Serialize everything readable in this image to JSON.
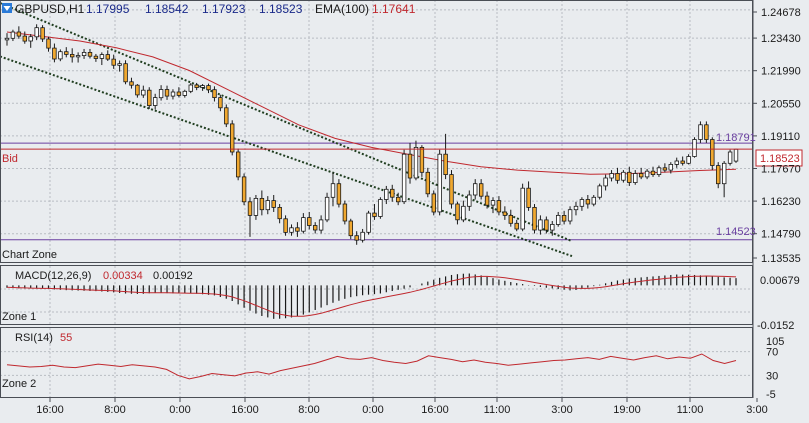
{
  "header": {
    "symbol": "GBPUSD,H1",
    "open": "1.17995",
    "high": "1.18542",
    "low": "1.17923",
    "close": "1.18523",
    "ema_label": "EMA(100)",
    "ema_value": "1.17641"
  },
  "colors": {
    "background": "#e9ecef",
    "grid": "#b9bdc3",
    "up_fill": "#ffffff",
    "down_fill": "#f0a830",
    "candle_outline": "#1a1a1a",
    "ema_line": "#c0282e",
    "bid_line": "#c0282e",
    "hline": "#6a3fa0",
    "channel": "#1f3d1f",
    "ohlc_text": "#1a2a8a",
    "ema_text": "#c0282e",
    "macd_hist": "#1a1a1a",
    "macd_signal": "#c0282e",
    "rsi_line": "#c0282e",
    "bid_label_border": "#c0282e"
  },
  "main_panel": {
    "zone_label": "Chart Zone",
    "bid_label": "Bid",
    "bid_price_tag": "1.18523",
    "price_axis_labels": [
      "1.24678",
      "1.23430",
      "1.21990",
      "1.20550",
      "1.19110",
      "1.17670",
      "1.16230",
      "1.14790",
      "1.13535"
    ],
    "hline_upper_label": "1.18791",
    "hline_lower_label": "1.14523"
  },
  "macd_panel": {
    "title": "MACD(12,26,9)",
    "value1": "0.00334",
    "value2": "0.00192",
    "zone_label": "Zone 1",
    "axis_labels": [
      "0.00679",
      "-0.0152"
    ]
  },
  "rsi_panel": {
    "title": "RSI(14)",
    "value": "55",
    "zone_label": "Zone 2",
    "axis_labels": [
      "105",
      "70",
      "30",
      "-5"
    ]
  },
  "time_axis": {
    "labels": [
      "16:00",
      "8:00",
      "0:00",
      "16:00",
      "8:00",
      "0:00",
      "16:00",
      "11:00",
      "3:00",
      "19:00",
      "11:00",
      "3:00"
    ]
  },
  "chart_data": {
    "type": "candlestick",
    "symbol": "GBPUSD",
    "timeframe": "H1",
    "ema_period": 100,
    "price_range": [
      1.1354,
      1.2498
    ],
    "candles_ohlc": [
      [
        1.2335,
        1.2365,
        1.231,
        1.2342
      ],
      [
        1.2342,
        1.238,
        1.233,
        1.237
      ],
      [
        1.237,
        1.2395,
        1.234,
        1.2352
      ],
      [
        1.2352,
        1.2372,
        1.2318,
        1.233
      ],
      [
        1.233,
        1.2361,
        1.23,
        1.2349
      ],
      [
        1.2349,
        1.2404,
        1.2334,
        1.2389
      ],
      [
        1.2389,
        1.24,
        1.2326,
        1.2339
      ],
      [
        1.2339,
        1.2349,
        1.2283,
        1.2299
      ],
      [
        1.2299,
        1.2319,
        1.2236,
        1.2251
      ],
      [
        1.2251,
        1.2293,
        1.2241,
        1.2283
      ],
      [
        1.2283,
        1.2303,
        1.2258,
        1.2271
      ],
      [
        1.2271,
        1.2298,
        1.2235,
        1.226
      ],
      [
        1.226,
        1.228,
        1.2235,
        1.2266
      ],
      [
        1.2266,
        1.2295,
        1.2251,
        1.228
      ],
      [
        1.228,
        1.2295,
        1.2253,
        1.2263
      ],
      [
        1.2263,
        1.2273,
        1.2238,
        1.2253
      ],
      [
        1.2253,
        1.228,
        1.2224,
        1.227
      ],
      [
        1.227,
        1.2289,
        1.2242,
        1.225
      ],
      [
        1.225,
        1.227,
        1.2207,
        1.2223
      ],
      [
        1.2223,
        1.2244,
        1.2195,
        1.223
      ],
      [
        1.223,
        1.2245,
        1.2139,
        1.215
      ],
      [
        1.215,
        1.2168,
        1.212,
        1.2135
      ],
      [
        1.2135,
        1.214,
        1.208,
        1.2092
      ],
      [
        1.2092,
        1.2133,
        1.2079,
        1.2113
      ],
      [
        1.2113,
        1.2126,
        1.203,
        1.2045
      ],
      [
        1.2045,
        1.2097,
        1.2028,
        1.208
      ],
      [
        1.208,
        1.2135,
        1.2067,
        1.2116
      ],
      [
        1.2116,
        1.2133,
        1.207,
        1.2087
      ],
      [
        1.2087,
        1.2117,
        1.2072,
        1.2105
      ],
      [
        1.2105,
        1.2126,
        1.2081,
        1.209
      ],
      [
        1.209,
        1.2115,
        1.208,
        1.2108
      ],
      [
        1.2108,
        1.2144,
        1.21,
        1.2136
      ],
      [
        1.2136,
        1.2145,
        1.2113,
        1.2125
      ],
      [
        1.2125,
        1.214,
        1.211,
        1.2133
      ],
      [
        1.2133,
        1.2142,
        1.21,
        1.2115
      ],
      [
        1.2115,
        1.213,
        1.2063,
        1.208
      ],
      [
        1.208,
        1.2093,
        1.202,
        1.2035
      ],
      [
        1.2035,
        1.205,
        1.195,
        1.1964
      ],
      [
        1.1964,
        1.198,
        1.1825,
        1.184
      ],
      [
        1.184,
        1.1855,
        1.1715,
        1.173
      ],
      [
        1.173,
        1.1745,
        1.1605,
        1.162
      ],
      [
        1.162,
        1.164,
        1.1465,
        1.156
      ],
      [
        1.156,
        1.165,
        1.154,
        1.1635
      ],
      [
        1.1635,
        1.167,
        1.156,
        1.1585
      ],
      [
        1.1585,
        1.1645,
        1.1565,
        1.1625
      ],
      [
        1.1625,
        1.165,
        1.1575,
        1.1595
      ],
      [
        1.1595,
        1.161,
        1.1525,
        1.1545
      ],
      [
        1.1545,
        1.156,
        1.147,
        1.1485
      ],
      [
        1.1485,
        1.152,
        1.147,
        1.1505
      ],
      [
        1.1505,
        1.153,
        1.1465,
        1.149
      ],
      [
        1.149,
        1.157,
        1.148,
        1.155
      ],
      [
        1.155,
        1.1575,
        1.1498,
        1.1515
      ],
      [
        1.1515,
        1.153,
        1.148,
        1.1495
      ],
      [
        1.1495,
        1.156,
        1.148,
        1.154
      ],
      [
        1.154,
        1.166,
        1.153,
        1.164
      ],
      [
        1.164,
        1.175,
        1.16,
        1.17
      ],
      [
        1.17,
        1.172,
        1.1595,
        1.161
      ],
      [
        1.161,
        1.1625,
        1.152,
        1.1535
      ],
      [
        1.1535,
        1.1545,
        1.1455,
        1.147
      ],
      [
        1.147,
        1.149,
        1.143,
        1.145
      ],
      [
        1.145,
        1.15,
        1.144,
        1.1485
      ],
      [
        1.1485,
        1.158,
        1.1475,
        1.157
      ],
      [
        1.157,
        1.161,
        1.154,
        1.1555
      ],
      [
        1.1555,
        1.164,
        1.1545,
        1.163
      ],
      [
        1.163,
        1.169,
        1.161,
        1.1675
      ],
      [
        1.1675,
        1.1695,
        1.162,
        1.164
      ],
      [
        1.164,
        1.166,
        1.1605,
        1.162
      ],
      [
        1.162,
        1.185,
        1.161,
        1.183
      ],
      [
        1.183,
        1.188,
        1.17,
        1.1725
      ],
      [
        1.1725,
        1.189,
        1.1715,
        1.186
      ],
      [
        1.186,
        1.187,
        1.173,
        1.175
      ],
      [
        1.175,
        1.177,
        1.164,
        1.1655
      ],
      [
        1.1655,
        1.167,
        1.156,
        1.1575
      ],
      [
        1.1575,
        1.185,
        1.156,
        1.183
      ],
      [
        1.183,
        1.192,
        1.172,
        1.174
      ],
      [
        1.174,
        1.176,
        1.159,
        1.161
      ],
      [
        1.161,
        1.162,
        1.152,
        1.154
      ],
      [
        1.154,
        1.1625,
        1.153,
        1.16
      ],
      [
        1.16,
        1.167,
        1.158,
        1.165
      ],
      [
        1.165,
        1.172,
        1.163,
        1.17
      ],
      [
        1.17,
        1.172,
        1.163,
        1.1645
      ],
      [
        1.1645,
        1.1665,
        1.159,
        1.1605
      ],
      [
        1.1605,
        1.164,
        1.157,
        1.1625
      ],
      [
        1.1625,
        1.1645,
        1.156,
        1.1575
      ],
      [
        1.1575,
        1.16,
        1.154,
        1.156
      ],
      [
        1.156,
        1.1585,
        1.151,
        1.1525
      ],
      [
        1.1525,
        1.154,
        1.149,
        1.15
      ],
      [
        1.15,
        1.17,
        1.149,
        1.168
      ],
      [
        1.168,
        1.171,
        1.158,
        1.1595
      ],
      [
        1.1595,
        1.161,
        1.148,
        1.1495
      ],
      [
        1.1495,
        1.156,
        1.1475,
        1.154
      ],
      [
        1.154,
        1.1555,
        1.148,
        1.1495
      ],
      [
        1.1495,
        1.1535,
        1.147,
        1.152
      ],
      [
        1.152,
        1.1575,
        1.151,
        1.156
      ],
      [
        1.156,
        1.158,
        1.152,
        1.1535
      ],
      [
        1.1535,
        1.16,
        1.152,
        1.1585
      ],
      [
        1.1585,
        1.162,
        1.156,
        1.16
      ],
      [
        1.16,
        1.164,
        1.158,
        1.163
      ],
      [
        1.163,
        1.165,
        1.159,
        1.161
      ],
      [
        1.161,
        1.165,
        1.16,
        1.164
      ],
      [
        1.164,
        1.17,
        1.163,
        1.169
      ],
      [
        1.169,
        1.174,
        1.167,
        1.1725
      ],
      [
        1.1725,
        1.176,
        1.171,
        1.1745
      ],
      [
        1.1745,
        1.177,
        1.17,
        1.1715
      ],
      [
        1.1715,
        1.176,
        1.1705,
        1.175
      ],
      [
        1.175,
        1.1775,
        1.169,
        1.1705
      ],
      [
        1.1705,
        1.176,
        1.1695,
        1.1745
      ],
      [
        1.1745,
        1.177,
        1.172,
        1.173
      ],
      [
        1.173,
        1.1765,
        1.172,
        1.1755
      ],
      [
        1.1755,
        1.1775,
        1.173,
        1.174
      ],
      [
        1.174,
        1.178,
        1.173,
        1.177
      ],
      [
        1.177,
        1.179,
        1.175,
        1.176
      ],
      [
        1.176,
        1.1795,
        1.1745,
        1.1785
      ],
      [
        1.1785,
        1.1815,
        1.177,
        1.18
      ],
      [
        1.18,
        1.182,
        1.178,
        1.179
      ],
      [
        1.179,
        1.183,
        1.1785,
        1.182
      ],
      [
        1.182,
        1.1905,
        1.1815,
        1.1895
      ],
      [
        1.1895,
        1.1975,
        1.188,
        1.196
      ],
      [
        1.196,
        1.1975,
        1.188,
        1.1895
      ],
      [
        1.1895,
        1.1905,
        1.176,
        1.178
      ],
      [
        1.178,
        1.1795,
        1.168,
        1.17
      ],
      [
        1.17,
        1.18,
        1.164,
        1.179
      ],
      [
        1.179,
        1.185,
        1.178,
        1.184
      ],
      [
        1.18,
        1.1854,
        1.1792,
        1.1852
      ]
    ],
    "ema_100": [
      1.237,
      1.235,
      1.233,
      1.23,
      1.226,
      1.22,
      1.212,
      1.204,
      1.196,
      1.19,
      1.186,
      1.183,
      1.18,
      1.1775,
      1.176,
      1.175,
      1.1742,
      1.1744,
      1.175,
      1.1758,
      1.1764
    ],
    "channel_upper": [
      [
        1.2498,
        0
      ],
      [
        1.1446,
        1
      ]
    ],
    "channel_lower": [
      [
        1.2262,
        0
      ],
      [
        1.138,
        1
      ]
    ],
    "hlines": [
      1.18791,
      1.14523
    ],
    "bid": 1.18523,
    "macd": {
      "range": [
        -0.0152,
        0.00679
      ],
      "histogram_profile": [
        -0.001,
        -0.0013,
        -0.0012,
        -0.0016,
        -0.002,
        -0.0022,
        -0.0024,
        -0.0028,
        -0.0034,
        -0.0036,
        -0.003,
        -0.0033,
        -0.0032,
        -0.0036,
        -0.0042,
        -0.006,
        -0.0095,
        -0.0125,
        -0.014,
        -0.0135,
        -0.012,
        -0.0095,
        -0.007,
        -0.005,
        -0.004,
        -0.0035,
        -0.0022,
        -0.001,
        0.001,
        0.003,
        0.0045,
        0.005,
        0.004,
        0.0025,
        0.0012,
        0.0002,
        -0.0008,
        -0.0015,
        -0.0022,
        -0.001,
        0.0005,
        0.002,
        0.003,
        0.0035,
        0.004,
        0.0045,
        0.0044,
        0.004,
        0.0034,
        0.003
      ],
      "signal_profile": [
        -0.0008,
        -0.001,
        -0.0012,
        -0.0013,
        -0.0015,
        -0.0018,
        -0.002,
        -0.0022,
        -0.0026,
        -0.003,
        -0.0031,
        -0.0031,
        -0.0032,
        -0.0033,
        -0.0036,
        -0.0045,
        -0.0065,
        -0.009,
        -0.0115,
        -0.0128,
        -0.0128,
        -0.0118,
        -0.01,
        -0.0082,
        -0.0066,
        -0.0054,
        -0.0042,
        -0.003,
        -0.0015,
        0.0003,
        0.002,
        0.0033,
        0.0038,
        0.0035,
        0.0027,
        0.0017,
        0.0006,
        -0.0004,
        -0.0012,
        -0.0013,
        -0.0008,
        0.0002,
        0.0012,
        0.002,
        0.0027,
        0.0033,
        0.0037,
        0.0039,
        0.0038,
        0.0035
      ],
      "value": 0.00334,
      "signal": 0.00192
    },
    "rsi": {
      "period": 14,
      "range": [
        -5,
        105
      ],
      "levels": [
        70,
        30
      ],
      "value": 55,
      "series": [
        48,
        46,
        44,
        45,
        47,
        44,
        43,
        46,
        49,
        47,
        45,
        48,
        46,
        44,
        40,
        30,
        24,
        28,
        33,
        31,
        29,
        34,
        36,
        32,
        38,
        42,
        46,
        50,
        56,
        62,
        58,
        57,
        60,
        55,
        52,
        50,
        54,
        63,
        60,
        57,
        53,
        56,
        52,
        50,
        47,
        49,
        51,
        53,
        55,
        56,
        58,
        60,
        57,
        62,
        59,
        56,
        60,
        63,
        58,
        61,
        59,
        66,
        55,
        50,
        55
      ]
    }
  }
}
